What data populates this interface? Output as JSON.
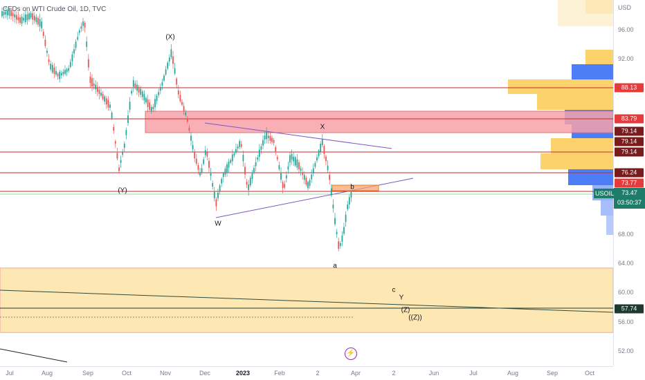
{
  "header": {
    "symbol_title": "CFDs on WTI Crude Oil, 1D, TVC"
  },
  "colors": {
    "bull": "#26a69a",
    "bear": "#ef5350",
    "resistance_line": "#c62828",
    "zone_red": "#f7a1a8",
    "zone_yellow": "#fde7b3",
    "trendline": "#7e57c2",
    "vp_blue": "#4d7ef7",
    "vp_yellow": "#fccd5d",
    "current_price": "#1e7d6a"
  },
  "price_scale": {
    "currency": "USD",
    "ticks": [
      "96.00",
      "92.00",
      "68.00",
      "64.00",
      "60.00",
      "56.00",
      "52.00"
    ],
    "tags": [
      {
        "text": "88.13",
        "style": "red"
      },
      {
        "text": "83.79",
        "style": "red"
      },
      {
        "text": "79.14",
        "style": "dark"
      },
      {
        "text": "79.14",
        "style": "dark"
      },
      {
        "text": "79.14",
        "style": "dark"
      },
      {
        "text": "76.24",
        "style": "dark"
      },
      {
        "text": "73.77",
        "style": "red"
      },
      {
        "text": "57.74",
        "style": "darkgreen"
      }
    ],
    "current": {
      "symbol": "USOIL",
      "price": "73.47",
      "countdown": "03:50:37"
    }
  },
  "time_axis": {
    "labels": [
      "Jul",
      "Aug",
      "Sep",
      "Oct",
      "Nov",
      "Dec",
      "2023",
      "Feb",
      "2",
      "Apr",
      "2",
      "Jun",
      "Jul",
      "Aug",
      "Sep",
      "Oct"
    ]
  },
  "waves": [
    "(X)",
    "(Y)",
    "X",
    "W",
    "b",
    "a",
    "c",
    "Y",
    "(Z)",
    "((Z))"
  ],
  "chart_data": {
    "type": "candlestick",
    "title": "CFDs on WTI Crude Oil, 1D, TVC",
    "ylim": [
      50,
      100
    ],
    "horizontal_levels": [
      88.13,
      83.79,
      79.14,
      76.24,
      73.77,
      57.74
    ],
    "zones": [
      {
        "from": 80.4,
        "to": 83.5,
        "color": "red"
      },
      {
        "from": 54.0,
        "to": 63.0,
        "color": "yellow"
      }
    ],
    "current_price": 73.47,
    "wave_labels": [
      "(X)",
      "(Y)",
      "X",
      "W",
      "b",
      "a",
      "c",
      "Y",
      "(Z)",
      "((Z))"
    ]
  }
}
